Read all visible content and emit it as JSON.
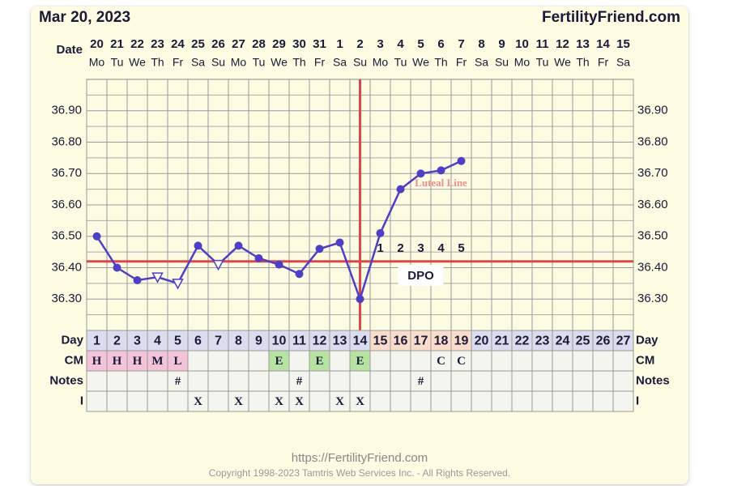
{
  "header": {
    "date": "Mar 20, 2023",
    "site": "FertilityFriend.com"
  },
  "chart_data": {
    "type": "line",
    "x_label": "Date",
    "dates": [
      20,
      21,
      22,
      23,
      24,
      25,
      26,
      27,
      28,
      29,
      30,
      31,
      1,
      2,
      3,
      4,
      5,
      6,
      7,
      8,
      9,
      10,
      11,
      12,
      13,
      14,
      15
    ],
    "weekdays": [
      "Mo",
      "Tu",
      "We",
      "Th",
      "Fr",
      "Sa",
      "Su",
      "Mo",
      "Tu",
      "We",
      "Th",
      "Fr",
      "Sa",
      "Su",
      "Mo",
      "Tu",
      "We",
      "Th",
      "Fr",
      "Sa",
      "Su",
      "Mo",
      "Tu",
      "We",
      "Th",
      "Fr",
      "Sa"
    ],
    "values": [
      36.5,
      36.4,
      36.36,
      36.37,
      36.35,
      36.47,
      36.41,
      36.47,
      36.43,
      36.41,
      36.38,
      36.46,
      36.48,
      36.3,
      36.51,
      36.65,
      36.7,
      36.71,
      36.74,
      null,
      null,
      null,
      null,
      null,
      null,
      null,
      null
    ],
    "markers": [
      "circle",
      "circle",
      "circle",
      "triangle",
      "triangle",
      "circle",
      "triangle",
      "circle",
      "circle",
      "circle",
      "circle",
      "circle",
      "circle",
      "circle",
      "circle",
      "circle",
      "circle",
      "circle",
      "circle",
      null,
      null,
      null,
      null,
      null,
      null,
      null,
      null
    ],
    "color": "#4f3fc4",
    "ylim": [
      36.2,
      37.0
    ],
    "yticks": [
      {
        "value": 36.3,
        "label": "36.30"
      },
      {
        "value": 36.4,
        "label": "36.40"
      },
      {
        "value": 36.5,
        "label": "36.50"
      },
      {
        "value": 36.6,
        "label": "36.60"
      },
      {
        "value": 36.7,
        "label": "36.70"
      },
      {
        "value": 36.8,
        "label": "36.80"
      },
      {
        "value": 36.9,
        "label": "36.90"
      }
    ],
    "minor_yticks": [
      36.25,
      36.35,
      36.45,
      36.55,
      36.65,
      36.75,
      36.85,
      36.95
    ],
    "grid": true,
    "coverline": 36.42,
    "ovulation_day": 14,
    "line_color": "#d9484c",
    "luteal_label": "Luteal Line",
    "dpo_label": "DPO",
    "dpo": [
      null,
      null,
      null,
      null,
      null,
      null,
      null,
      null,
      null,
      null,
      null,
      null,
      null,
      null,
      1,
      2,
      3,
      4,
      5,
      null,
      null,
      null,
      null,
      null,
      null,
      null,
      null
    ],
    "rows": {
      "labels": [
        "Day",
        "CM",
        "Notes",
        "I"
      ],
      "days": [
        1,
        2,
        3,
        4,
        5,
        6,
        7,
        8,
        9,
        10,
        11,
        12,
        13,
        14,
        15,
        16,
        17,
        18,
        19,
        20,
        21,
        22,
        23,
        24,
        25,
        26,
        27
      ],
      "cm": [
        "H",
        "H",
        "H",
        "M",
        "L",
        null,
        null,
        null,
        null,
        "E",
        null,
        "E",
        null,
        "E",
        null,
        null,
        null,
        "C",
        "C",
        null,
        null,
        null,
        null,
        null,
        null,
        null,
        null
      ],
      "notes": [
        null,
        null,
        null,
        null,
        "#",
        null,
        null,
        null,
        null,
        null,
        "#",
        null,
        null,
        null,
        null,
        null,
        "#",
        null,
        null,
        null,
        null,
        null,
        null,
        null,
        null,
        null,
        null
      ],
      "intercourse": [
        null,
        null,
        null,
        null,
        null,
        "X",
        null,
        "X",
        null,
        "X",
        "X",
        null,
        "X",
        "X",
        null,
        null,
        null,
        null,
        null,
        null,
        null,
        null,
        null,
        null,
        null,
        null,
        null
      ],
      "cm_colors": {
        "H": "#f3c3d8",
        "M": "#f3c3d8",
        "L": "#f3c3d8",
        "E": "#b6e3a2"
      }
    }
  },
  "footer": {
    "url": "https://FertilityFriend.com",
    "copyright": "Copyright 1998-2023 Tamtris Web Services Inc. - All Rights Reserved."
  }
}
